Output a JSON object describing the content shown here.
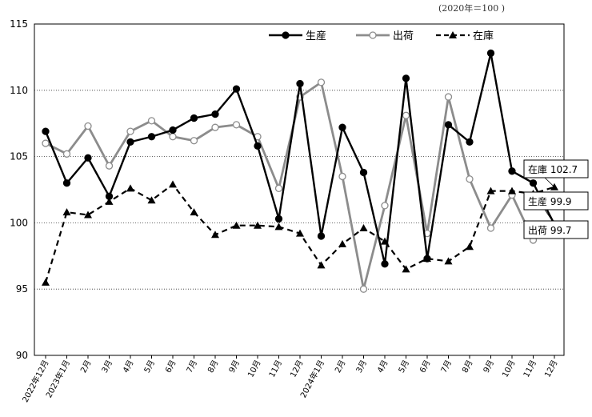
{
  "chart_data": {
    "type": "line",
    "unit_note": "(2020年＝100 )",
    "categories": [
      "2022年12月",
      "2023年1月",
      "2月",
      "3月",
      "4月",
      "5月",
      "6月",
      "7月",
      "8月",
      "9月",
      "10月",
      "11月",
      "12月",
      "2024年1月",
      "2月",
      "3月",
      "4月",
      "5月",
      "6月",
      "7月",
      "8月",
      "9月",
      "10月",
      "11月",
      "12月"
    ],
    "ylim": [
      90,
      115
    ],
    "yticks": [
      90,
      95,
      100,
      105,
      110,
      115
    ],
    "grid": true,
    "legend_position": "top-right",
    "series": [
      {
        "name": "生産",
        "style": "solid-black-filled-circle",
        "color": "#000000",
        "values": [
          106.9,
          103.0,
          104.9,
          102.0,
          106.1,
          106.5,
          107.0,
          107.9,
          108.2,
          110.1,
          105.8,
          100.3,
          110.5,
          99.0,
          107.2,
          103.8,
          96.9,
          110.9,
          97.3,
          107.4,
          106.1,
          112.8,
          103.9,
          103.0,
          99.9
        ]
      },
      {
        "name": "出荷",
        "style": "solid-gray-open-circle",
        "color": "#8c8c8c",
        "values": [
          106.0,
          105.2,
          107.3,
          104.3,
          106.9,
          107.7,
          106.5,
          106.2,
          107.2,
          107.4,
          106.5,
          102.6,
          109.5,
          110.6,
          103.5,
          95.0,
          101.3,
          108.1,
          99.2,
          109.5,
          103.3,
          99.6,
          102.1,
          98.7,
          99.7
        ]
      },
      {
        "name": "在庫",
        "style": "dashed-black-triangle",
        "color": "#000000",
        "values": [
          95.5,
          100.8,
          100.6,
          101.6,
          102.6,
          101.7,
          102.9,
          100.8,
          99.1,
          99.8,
          99.8,
          99.7,
          99.2,
          96.8,
          98.4,
          99.6,
          98.6,
          96.5,
          97.3,
          97.1,
          98.2,
          102.4,
          102.4,
          102.2,
          102.7
        ]
      }
    ],
    "annotations": [
      {
        "series": "在庫",
        "label": "在庫 102.7"
      },
      {
        "series": "生産",
        "label": "生産 99.9"
      },
      {
        "series": "出荷",
        "label": "出荷 99.7"
      }
    ]
  }
}
